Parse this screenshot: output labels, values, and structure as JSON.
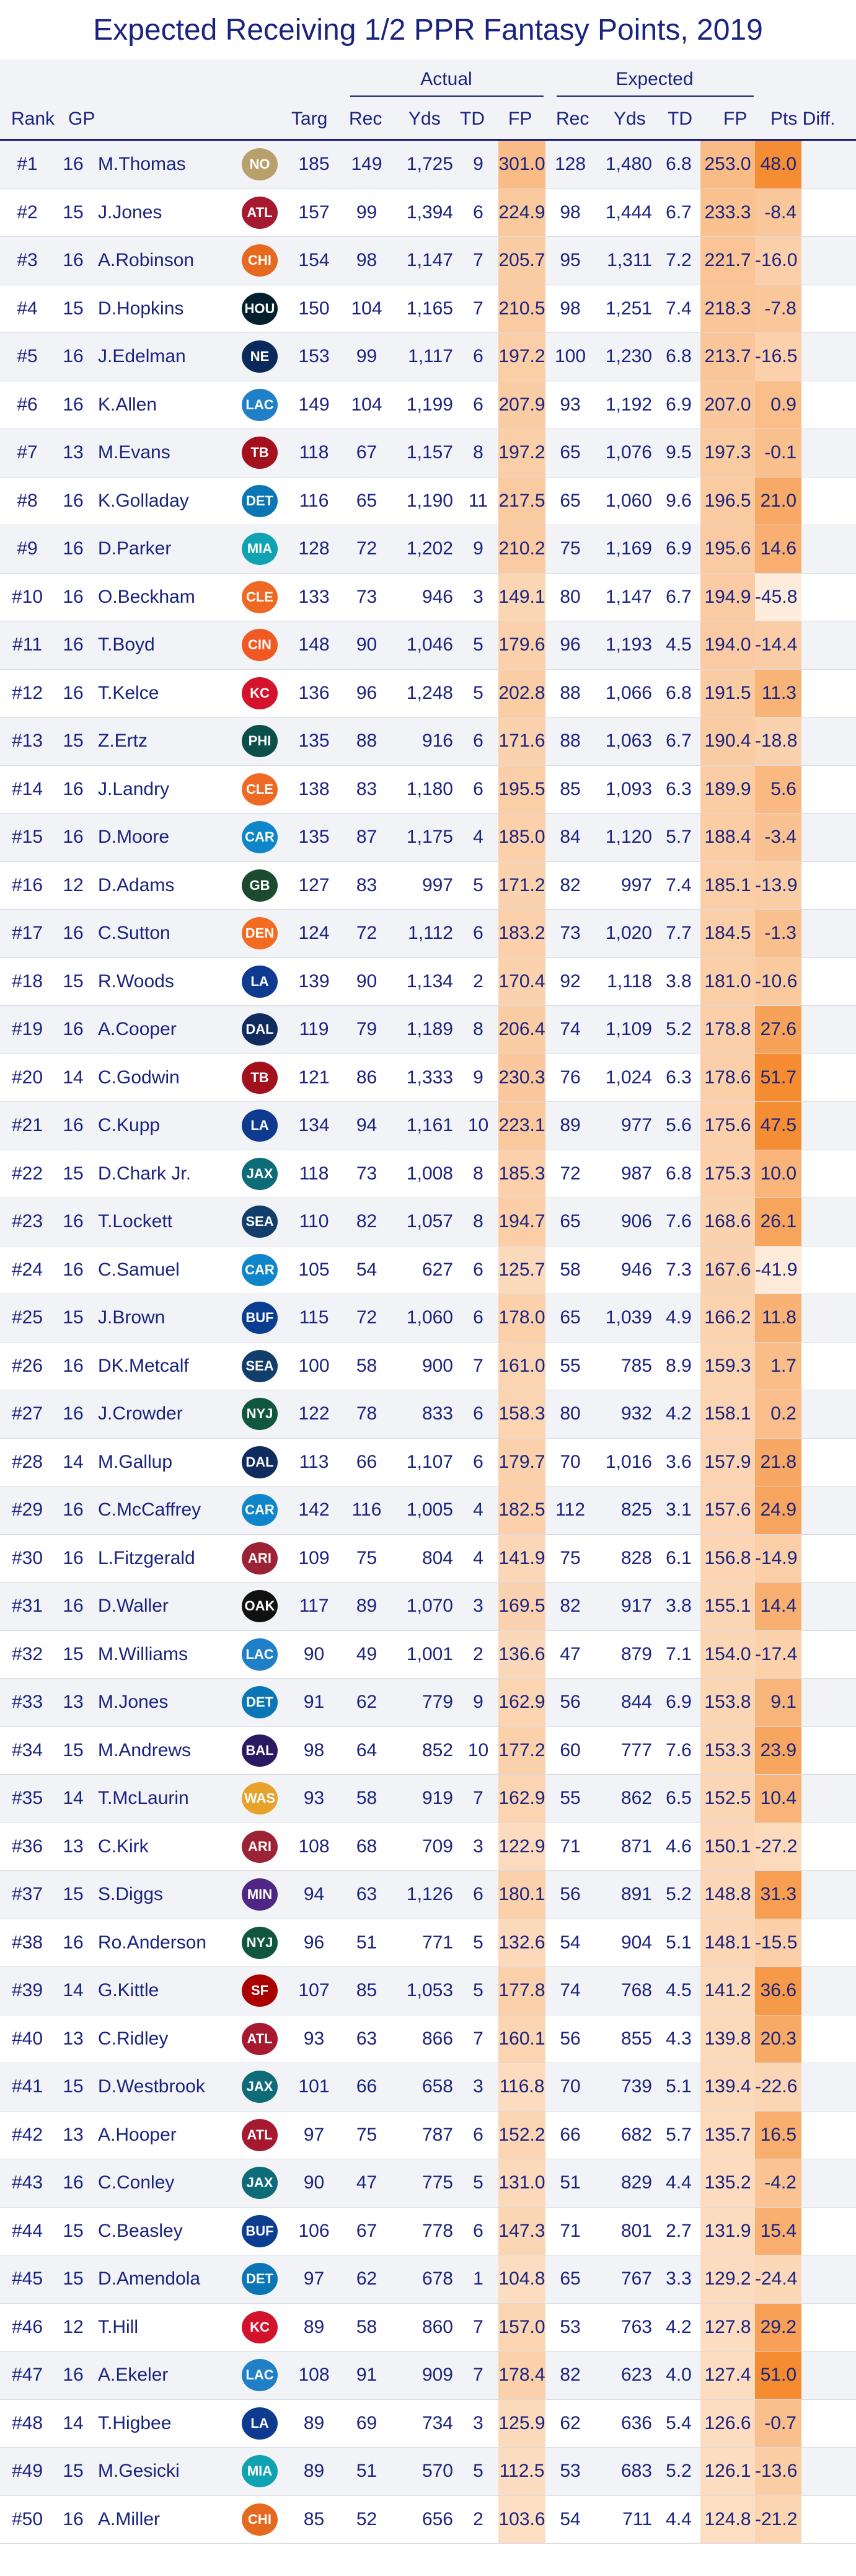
{
  "title": "Expected Receiving 1/2 PPR Fantasy Points, 2019",
  "groups": {
    "actual": "Actual",
    "expected": "Expected"
  },
  "columns": [
    "Rank",
    "GP",
    "",
    "",
    "Targ",
    "Rec",
    "Yds",
    "TD",
    "FP",
    "Rec",
    "Yds",
    "TD",
    "FP",
    "Pts Diff."
  ],
  "team_colors": {
    "NO": "#b8a06b",
    "ATL": "#a71930",
    "CHI": "#e56a20",
    "HOU": "#03202f",
    "NE": "#0b2a5c",
    "LAC": "#1f7fc7",
    "TB": "#a3111d",
    "DET": "#0a76b6",
    "MIA": "#0fa3b1",
    "CLE": "#ee6a24",
    "CIN": "#f05a22",
    "KC": "#d3122c",
    "PHI": "#0b4f4a",
    "CAR": "#0f86c9",
    "GB": "#1b4a2e",
    "DEN": "#f36b21",
    "LA": "#0e3b8f",
    "DAL": "#102b5e",
    "JAX": "#0e6b78",
    "SEA": "#123e6b",
    "BUF": "#0b3d91",
    "NYJ": "#115740",
    "ARI": "#9b2335",
    "OAK": "#111111",
    "WAS": "#e7a22b",
    "BAL": "#2a1a63",
    "MIN": "#4f2683",
    "SF": "#aa0000"
  },
  "rows": [
    {
      "rank": "#1",
      "gp": "16",
      "player": "M.Thomas",
      "team": "NO",
      "targ": "185",
      "a_rec": "149",
      "a_yds": "1,725",
      "a_td": "9",
      "a_fp": "301.0",
      "e_rec": "128",
      "e_yds": "1,480",
      "e_td": "6.8",
      "e_fp": "253.0",
      "diff": "48.0"
    },
    {
      "rank": "#2",
      "gp": "15",
      "player": "J.Jones",
      "team": "ATL",
      "targ": "157",
      "a_rec": "99",
      "a_yds": "1,394",
      "a_td": "6",
      "a_fp": "224.9",
      "e_rec": "98",
      "e_yds": "1,444",
      "e_td": "6.7",
      "e_fp": "233.3",
      "diff": "-8.4"
    },
    {
      "rank": "#3",
      "gp": "16",
      "player": "A.Robinson",
      "team": "CHI",
      "targ": "154",
      "a_rec": "98",
      "a_yds": "1,147",
      "a_td": "7",
      "a_fp": "205.7",
      "e_rec": "95",
      "e_yds": "1,311",
      "e_td": "7.2",
      "e_fp": "221.7",
      "diff": "-16.0"
    },
    {
      "rank": "#4",
      "gp": "15",
      "player": "D.Hopkins",
      "team": "HOU",
      "targ": "150",
      "a_rec": "104",
      "a_yds": "1,165",
      "a_td": "7",
      "a_fp": "210.5",
      "e_rec": "98",
      "e_yds": "1,251",
      "e_td": "7.4",
      "e_fp": "218.3",
      "diff": "-7.8"
    },
    {
      "rank": "#5",
      "gp": "16",
      "player": "J.Edelman",
      "team": "NE",
      "targ": "153",
      "a_rec": "99",
      "a_yds": "1,117",
      "a_td": "6",
      "a_fp": "197.2",
      "e_rec": "100",
      "e_yds": "1,230",
      "e_td": "6.8",
      "e_fp": "213.7",
      "diff": "-16.5"
    },
    {
      "rank": "#6",
      "gp": "16",
      "player": "K.Allen",
      "team": "LAC",
      "targ": "149",
      "a_rec": "104",
      "a_yds": "1,199",
      "a_td": "6",
      "a_fp": "207.9",
      "e_rec": "93",
      "e_yds": "1,192",
      "e_td": "6.9",
      "e_fp": "207.0",
      "diff": "0.9"
    },
    {
      "rank": "#7",
      "gp": "13",
      "player": "M.Evans",
      "team": "TB",
      "targ": "118",
      "a_rec": "67",
      "a_yds": "1,157",
      "a_td": "8",
      "a_fp": "197.2",
      "e_rec": "65",
      "e_yds": "1,076",
      "e_td": "9.5",
      "e_fp": "197.3",
      "diff": "-0.1"
    },
    {
      "rank": "#8",
      "gp": "16",
      "player": "K.Golladay",
      "team": "DET",
      "targ": "116",
      "a_rec": "65",
      "a_yds": "1,190",
      "a_td": "11",
      "a_fp": "217.5",
      "e_rec": "65",
      "e_yds": "1,060",
      "e_td": "9.6",
      "e_fp": "196.5",
      "diff": "21.0"
    },
    {
      "rank": "#9",
      "gp": "16",
      "player": "D.Parker",
      "team": "MIA",
      "targ": "128",
      "a_rec": "72",
      "a_yds": "1,202",
      "a_td": "9",
      "a_fp": "210.2",
      "e_rec": "75",
      "e_yds": "1,169",
      "e_td": "6.9",
      "e_fp": "195.6",
      "diff": "14.6"
    },
    {
      "rank": "#10",
      "gp": "16",
      "player": "O.Beckham",
      "team": "CLE",
      "targ": "133",
      "a_rec": "73",
      "a_yds": "946",
      "a_td": "3",
      "a_fp": "149.1",
      "e_rec": "80",
      "e_yds": "1,147",
      "e_td": "6.7",
      "e_fp": "194.9",
      "diff": "-45.8"
    },
    {
      "rank": "#11",
      "gp": "16",
      "player": "T.Boyd",
      "team": "CIN",
      "targ": "148",
      "a_rec": "90",
      "a_yds": "1,046",
      "a_td": "5",
      "a_fp": "179.6",
      "e_rec": "96",
      "e_yds": "1,193",
      "e_td": "4.5",
      "e_fp": "194.0",
      "diff": "-14.4"
    },
    {
      "rank": "#12",
      "gp": "16",
      "player": "T.Kelce",
      "team": "KC",
      "targ": "136",
      "a_rec": "96",
      "a_yds": "1,248",
      "a_td": "5",
      "a_fp": "202.8",
      "e_rec": "88",
      "e_yds": "1,066",
      "e_td": "6.8",
      "e_fp": "191.5",
      "diff": "11.3"
    },
    {
      "rank": "#13",
      "gp": "15",
      "player": "Z.Ertz",
      "team": "PHI",
      "targ": "135",
      "a_rec": "88",
      "a_yds": "916",
      "a_td": "6",
      "a_fp": "171.6",
      "e_rec": "88",
      "e_yds": "1,063",
      "e_td": "6.7",
      "e_fp": "190.4",
      "diff": "-18.8"
    },
    {
      "rank": "#14",
      "gp": "16",
      "player": "J.Landry",
      "team": "CLE",
      "targ": "138",
      "a_rec": "83",
      "a_yds": "1,180",
      "a_td": "6",
      "a_fp": "195.5",
      "e_rec": "85",
      "e_yds": "1,093",
      "e_td": "6.3",
      "e_fp": "189.9",
      "diff": "5.6"
    },
    {
      "rank": "#15",
      "gp": "16",
      "player": "D.Moore",
      "team": "CAR",
      "targ": "135",
      "a_rec": "87",
      "a_yds": "1,175",
      "a_td": "4",
      "a_fp": "185.0",
      "e_rec": "84",
      "e_yds": "1,120",
      "e_td": "5.7",
      "e_fp": "188.4",
      "diff": "-3.4"
    },
    {
      "rank": "#16",
      "gp": "12",
      "player": "D.Adams",
      "team": "GB",
      "targ": "127",
      "a_rec": "83",
      "a_yds": "997",
      "a_td": "5",
      "a_fp": "171.2",
      "e_rec": "82",
      "e_yds": "997",
      "e_td": "7.4",
      "e_fp": "185.1",
      "diff": "-13.9"
    },
    {
      "rank": "#17",
      "gp": "16",
      "player": "C.Sutton",
      "team": "DEN",
      "targ": "124",
      "a_rec": "72",
      "a_yds": "1,112",
      "a_td": "6",
      "a_fp": "183.2",
      "e_rec": "73",
      "e_yds": "1,020",
      "e_td": "7.7",
      "e_fp": "184.5",
      "diff": "-1.3"
    },
    {
      "rank": "#18",
      "gp": "15",
      "player": "R.Woods",
      "team": "LA",
      "targ": "139",
      "a_rec": "90",
      "a_yds": "1,134",
      "a_td": "2",
      "a_fp": "170.4",
      "e_rec": "92",
      "e_yds": "1,118",
      "e_td": "3.8",
      "e_fp": "181.0",
      "diff": "-10.6"
    },
    {
      "rank": "#19",
      "gp": "16",
      "player": "A.Cooper",
      "team": "DAL",
      "targ": "119",
      "a_rec": "79",
      "a_yds": "1,189",
      "a_td": "8",
      "a_fp": "206.4",
      "e_rec": "74",
      "e_yds": "1,109",
      "e_td": "5.2",
      "e_fp": "178.8",
      "diff": "27.6"
    },
    {
      "rank": "#20",
      "gp": "14",
      "player": "C.Godwin",
      "team": "TB",
      "targ": "121",
      "a_rec": "86",
      "a_yds": "1,333",
      "a_td": "9",
      "a_fp": "230.3",
      "e_rec": "76",
      "e_yds": "1,024",
      "e_td": "6.3",
      "e_fp": "178.6",
      "diff": "51.7"
    },
    {
      "rank": "#21",
      "gp": "16",
      "player": "C.Kupp",
      "team": "LA",
      "targ": "134",
      "a_rec": "94",
      "a_yds": "1,161",
      "a_td": "10",
      "a_fp": "223.1",
      "e_rec": "89",
      "e_yds": "977",
      "e_td": "5.6",
      "e_fp": "175.6",
      "diff": "47.5"
    },
    {
      "rank": "#22",
      "gp": "15",
      "player": "D.Chark Jr.",
      "team": "JAX",
      "targ": "118",
      "a_rec": "73",
      "a_yds": "1,008",
      "a_td": "8",
      "a_fp": "185.3",
      "e_rec": "72",
      "e_yds": "987",
      "e_td": "6.8",
      "e_fp": "175.3",
      "diff": "10.0"
    },
    {
      "rank": "#23",
      "gp": "16",
      "player": "T.Lockett",
      "team": "SEA",
      "targ": "110",
      "a_rec": "82",
      "a_yds": "1,057",
      "a_td": "8",
      "a_fp": "194.7",
      "e_rec": "65",
      "e_yds": "906",
      "e_td": "7.6",
      "e_fp": "168.6",
      "diff": "26.1"
    },
    {
      "rank": "#24",
      "gp": "16",
      "player": "C.Samuel",
      "team": "CAR",
      "targ": "105",
      "a_rec": "54",
      "a_yds": "627",
      "a_td": "6",
      "a_fp": "125.7",
      "e_rec": "58",
      "e_yds": "946",
      "e_td": "7.3",
      "e_fp": "167.6",
      "diff": "-41.9"
    },
    {
      "rank": "#25",
      "gp": "15",
      "player": "J.Brown",
      "team": "BUF",
      "targ": "115",
      "a_rec": "72",
      "a_yds": "1,060",
      "a_td": "6",
      "a_fp": "178.0",
      "e_rec": "65",
      "e_yds": "1,039",
      "e_td": "4.9",
      "e_fp": "166.2",
      "diff": "11.8"
    },
    {
      "rank": "#26",
      "gp": "16",
      "player": "DK.Metcalf",
      "team": "SEA",
      "targ": "100",
      "a_rec": "58",
      "a_yds": "900",
      "a_td": "7",
      "a_fp": "161.0",
      "e_rec": "55",
      "e_yds": "785",
      "e_td": "8.9",
      "e_fp": "159.3",
      "diff": "1.7"
    },
    {
      "rank": "#27",
      "gp": "16",
      "player": "J.Crowder",
      "team": "NYJ",
      "targ": "122",
      "a_rec": "78",
      "a_yds": "833",
      "a_td": "6",
      "a_fp": "158.3",
      "e_rec": "80",
      "e_yds": "932",
      "e_td": "4.2",
      "e_fp": "158.1",
      "diff": "0.2"
    },
    {
      "rank": "#28",
      "gp": "14",
      "player": "M.Gallup",
      "team": "DAL",
      "targ": "113",
      "a_rec": "66",
      "a_yds": "1,107",
      "a_td": "6",
      "a_fp": "179.7",
      "e_rec": "70",
      "e_yds": "1,016",
      "e_td": "3.6",
      "e_fp": "157.9",
      "diff": "21.8"
    },
    {
      "rank": "#29",
      "gp": "16",
      "player": "C.McCaffrey",
      "team": "CAR",
      "targ": "142",
      "a_rec": "116",
      "a_yds": "1,005",
      "a_td": "4",
      "a_fp": "182.5",
      "e_rec": "112",
      "e_yds": "825",
      "e_td": "3.1",
      "e_fp": "157.6",
      "diff": "24.9"
    },
    {
      "rank": "#30",
      "gp": "16",
      "player": "L.Fitzgerald",
      "team": "ARI",
      "targ": "109",
      "a_rec": "75",
      "a_yds": "804",
      "a_td": "4",
      "a_fp": "141.9",
      "e_rec": "75",
      "e_yds": "828",
      "e_td": "6.1",
      "e_fp": "156.8",
      "diff": "-14.9"
    },
    {
      "rank": "#31",
      "gp": "16",
      "player": "D.Waller",
      "team": "OAK",
      "targ": "117",
      "a_rec": "89",
      "a_yds": "1,070",
      "a_td": "3",
      "a_fp": "169.5",
      "e_rec": "82",
      "e_yds": "917",
      "e_td": "3.8",
      "e_fp": "155.1",
      "diff": "14.4"
    },
    {
      "rank": "#32",
      "gp": "15",
      "player": "M.Williams",
      "team": "LAC",
      "targ": "90",
      "a_rec": "49",
      "a_yds": "1,001",
      "a_td": "2",
      "a_fp": "136.6",
      "e_rec": "47",
      "e_yds": "879",
      "e_td": "7.1",
      "e_fp": "154.0",
      "diff": "-17.4"
    },
    {
      "rank": "#33",
      "gp": "13",
      "player": "M.Jones",
      "team": "DET",
      "targ": "91",
      "a_rec": "62",
      "a_yds": "779",
      "a_td": "9",
      "a_fp": "162.9",
      "e_rec": "56",
      "e_yds": "844",
      "e_td": "6.9",
      "e_fp": "153.8",
      "diff": "9.1"
    },
    {
      "rank": "#34",
      "gp": "15",
      "player": "M.Andrews",
      "team": "BAL",
      "targ": "98",
      "a_rec": "64",
      "a_yds": "852",
      "a_td": "10",
      "a_fp": "177.2",
      "e_rec": "60",
      "e_yds": "777",
      "e_td": "7.6",
      "e_fp": "153.3",
      "diff": "23.9"
    },
    {
      "rank": "#35",
      "gp": "14",
      "player": "T.McLaurin",
      "team": "WAS",
      "targ": "93",
      "a_rec": "58",
      "a_yds": "919",
      "a_td": "7",
      "a_fp": "162.9",
      "e_rec": "55",
      "e_yds": "862",
      "e_td": "6.5",
      "e_fp": "152.5",
      "diff": "10.4"
    },
    {
      "rank": "#36",
      "gp": "13",
      "player": "C.Kirk",
      "team": "ARI",
      "targ": "108",
      "a_rec": "68",
      "a_yds": "709",
      "a_td": "3",
      "a_fp": "122.9",
      "e_rec": "71",
      "e_yds": "871",
      "e_td": "4.6",
      "e_fp": "150.1",
      "diff": "-27.2"
    },
    {
      "rank": "#37",
      "gp": "15",
      "player": "S.Diggs",
      "team": "MIN",
      "targ": "94",
      "a_rec": "63",
      "a_yds": "1,126",
      "a_td": "6",
      "a_fp": "180.1",
      "e_rec": "56",
      "e_yds": "891",
      "e_td": "5.2",
      "e_fp": "148.8",
      "diff": "31.3"
    },
    {
      "rank": "#38",
      "gp": "16",
      "player": "Ro.Anderson",
      "team": "NYJ",
      "targ": "96",
      "a_rec": "51",
      "a_yds": "771",
      "a_td": "5",
      "a_fp": "132.6",
      "e_rec": "54",
      "e_yds": "904",
      "e_td": "5.1",
      "e_fp": "148.1",
      "diff": "-15.5"
    },
    {
      "rank": "#39",
      "gp": "14",
      "player": "G.Kittle",
      "team": "SF",
      "targ": "107",
      "a_rec": "85",
      "a_yds": "1,053",
      "a_td": "5",
      "a_fp": "177.8",
      "e_rec": "74",
      "e_yds": "768",
      "e_td": "4.5",
      "e_fp": "141.2",
      "diff": "36.6"
    },
    {
      "rank": "#40",
      "gp": "13",
      "player": "C.Ridley",
      "team": "ATL",
      "targ": "93",
      "a_rec": "63",
      "a_yds": "866",
      "a_td": "7",
      "a_fp": "160.1",
      "e_rec": "56",
      "e_yds": "855",
      "e_td": "4.3",
      "e_fp": "139.8",
      "diff": "20.3"
    },
    {
      "rank": "#41",
      "gp": "15",
      "player": "D.Westbrook",
      "team": "JAX",
      "targ": "101",
      "a_rec": "66",
      "a_yds": "658",
      "a_td": "3",
      "a_fp": "116.8",
      "e_rec": "70",
      "e_yds": "739",
      "e_td": "5.1",
      "e_fp": "139.4",
      "diff": "-22.6"
    },
    {
      "rank": "#42",
      "gp": "13",
      "player": "A.Hooper",
      "team": "ATL",
      "targ": "97",
      "a_rec": "75",
      "a_yds": "787",
      "a_td": "6",
      "a_fp": "152.2",
      "e_rec": "66",
      "e_yds": "682",
      "e_td": "5.7",
      "e_fp": "135.7",
      "diff": "16.5"
    },
    {
      "rank": "#43",
      "gp": "16",
      "player": "C.Conley",
      "team": "JAX",
      "targ": "90",
      "a_rec": "47",
      "a_yds": "775",
      "a_td": "5",
      "a_fp": "131.0",
      "e_rec": "51",
      "e_yds": "829",
      "e_td": "4.4",
      "e_fp": "135.2",
      "diff": "-4.2"
    },
    {
      "rank": "#44",
      "gp": "15",
      "player": "C.Beasley",
      "team": "BUF",
      "targ": "106",
      "a_rec": "67",
      "a_yds": "778",
      "a_td": "6",
      "a_fp": "147.3",
      "e_rec": "71",
      "e_yds": "801",
      "e_td": "2.7",
      "e_fp": "131.9",
      "diff": "15.4"
    },
    {
      "rank": "#45",
      "gp": "15",
      "player": "D.Amendola",
      "team": "DET",
      "targ": "97",
      "a_rec": "62",
      "a_yds": "678",
      "a_td": "1",
      "a_fp": "104.8",
      "e_rec": "65",
      "e_yds": "767",
      "e_td": "3.3",
      "e_fp": "129.2",
      "diff": "-24.4"
    },
    {
      "rank": "#46",
      "gp": "12",
      "player": "T.Hill",
      "team": "KC",
      "targ": "89",
      "a_rec": "58",
      "a_yds": "860",
      "a_td": "7",
      "a_fp": "157.0",
      "e_rec": "53",
      "e_yds": "763",
      "e_td": "4.2",
      "e_fp": "127.8",
      "diff": "29.2"
    },
    {
      "rank": "#47",
      "gp": "16",
      "player": "A.Ekeler",
      "team": "LAC",
      "targ": "108",
      "a_rec": "91",
      "a_yds": "909",
      "a_td": "7",
      "a_fp": "178.4",
      "e_rec": "82",
      "e_yds": "623",
      "e_td": "4.0",
      "e_fp": "127.4",
      "diff": "51.0"
    },
    {
      "rank": "#48",
      "gp": "14",
      "player": "T.Higbee",
      "team": "LA",
      "targ": "89",
      "a_rec": "69",
      "a_yds": "734",
      "a_td": "3",
      "a_fp": "125.9",
      "e_rec": "62",
      "e_yds": "636",
      "e_td": "5.4",
      "e_fp": "126.6",
      "diff": "-0.7"
    },
    {
      "rank": "#49",
      "gp": "15",
      "player": "M.Gesicki",
      "team": "MIA",
      "targ": "89",
      "a_rec": "51",
      "a_yds": "570",
      "a_td": "5",
      "a_fp": "112.5",
      "e_rec": "53",
      "e_yds": "683",
      "e_td": "5.2",
      "e_fp": "126.1",
      "diff": "-13.6"
    },
    {
      "rank": "#50",
      "gp": "16",
      "player": "A.Miller",
      "team": "CHI",
      "targ": "85",
      "a_rec": "52",
      "a_yds": "656",
      "a_td": "2",
      "a_fp": "103.6",
      "e_rec": "54",
      "e_yds": "711",
      "e_td": "4.4",
      "e_fp": "124.8",
      "diff": "-21.2"
    }
  ]
}
